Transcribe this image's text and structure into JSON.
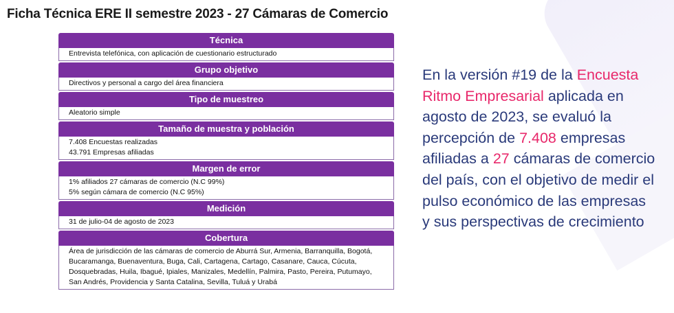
{
  "title": "Ficha Técnica ERE II semestre 2023 - 27 Cámaras de Comercio",
  "colors": {
    "header_bg": "#7a2fa0",
    "body_text": "#2a3a7a",
    "highlight": "#e8276a"
  },
  "sections": [
    {
      "header": "Técnica",
      "lines": [
        "Entrevista telefónica, con aplicación de cuestionario estructurado"
      ]
    },
    {
      "header": "Grupo objetivo",
      "lines": [
        "Directivos y personal a cargo del área financiera"
      ]
    },
    {
      "header": "Tipo de muestreo",
      "lines": [
        "Aleatorio simple"
      ]
    },
    {
      "header": "Tamaño de muestra y población",
      "lines": [
        "7.408 Encuestas realizadas",
        "43.791 Empresas afiliadas"
      ]
    },
    {
      "header": "Margen de error",
      "lines": [
        "1%  afiliados 27 cámaras de comercio (N.C 99%)",
        "5% según cámara de comercio (N.C 95%)"
      ]
    },
    {
      "header": "Medición",
      "lines": [
        "31 de julio-04 de agosto de 2023"
      ]
    },
    {
      "header": "Cobertura",
      "lines": [
        "Área de jurisdicción de las cámaras de comercio de Aburrá Sur, Armenia, Barranquilla, Bogotá, Bucaramanga, Buenaventura, Buga, Cali, Cartagena, Cartago, Casanare, Cauca, Cúcuta, Dosquebradas, Huila, Ibagué, Ipiales, Manizales, Medellín, Palmira, Pasto, Pereira, Putumayo, San Andrés, Providencia y Santa Catalina, Sevilla, Tuluá y Urabá"
      ]
    }
  ],
  "summary": {
    "p1": "En la versión #19 de la",
    "hl1": "Encuesta Ritmo Empresarial",
    "p2": "aplicada en agosto de 2023, se evaluó la percepción de",
    "hl2": "7.408",
    "p3": "empresas afiliadas a",
    "hl3": "27",
    "p4": "cámaras de comercio del país, con el objetivo de medir el pulso económico de las empresas y sus perspectivas de crecimiento"
  }
}
